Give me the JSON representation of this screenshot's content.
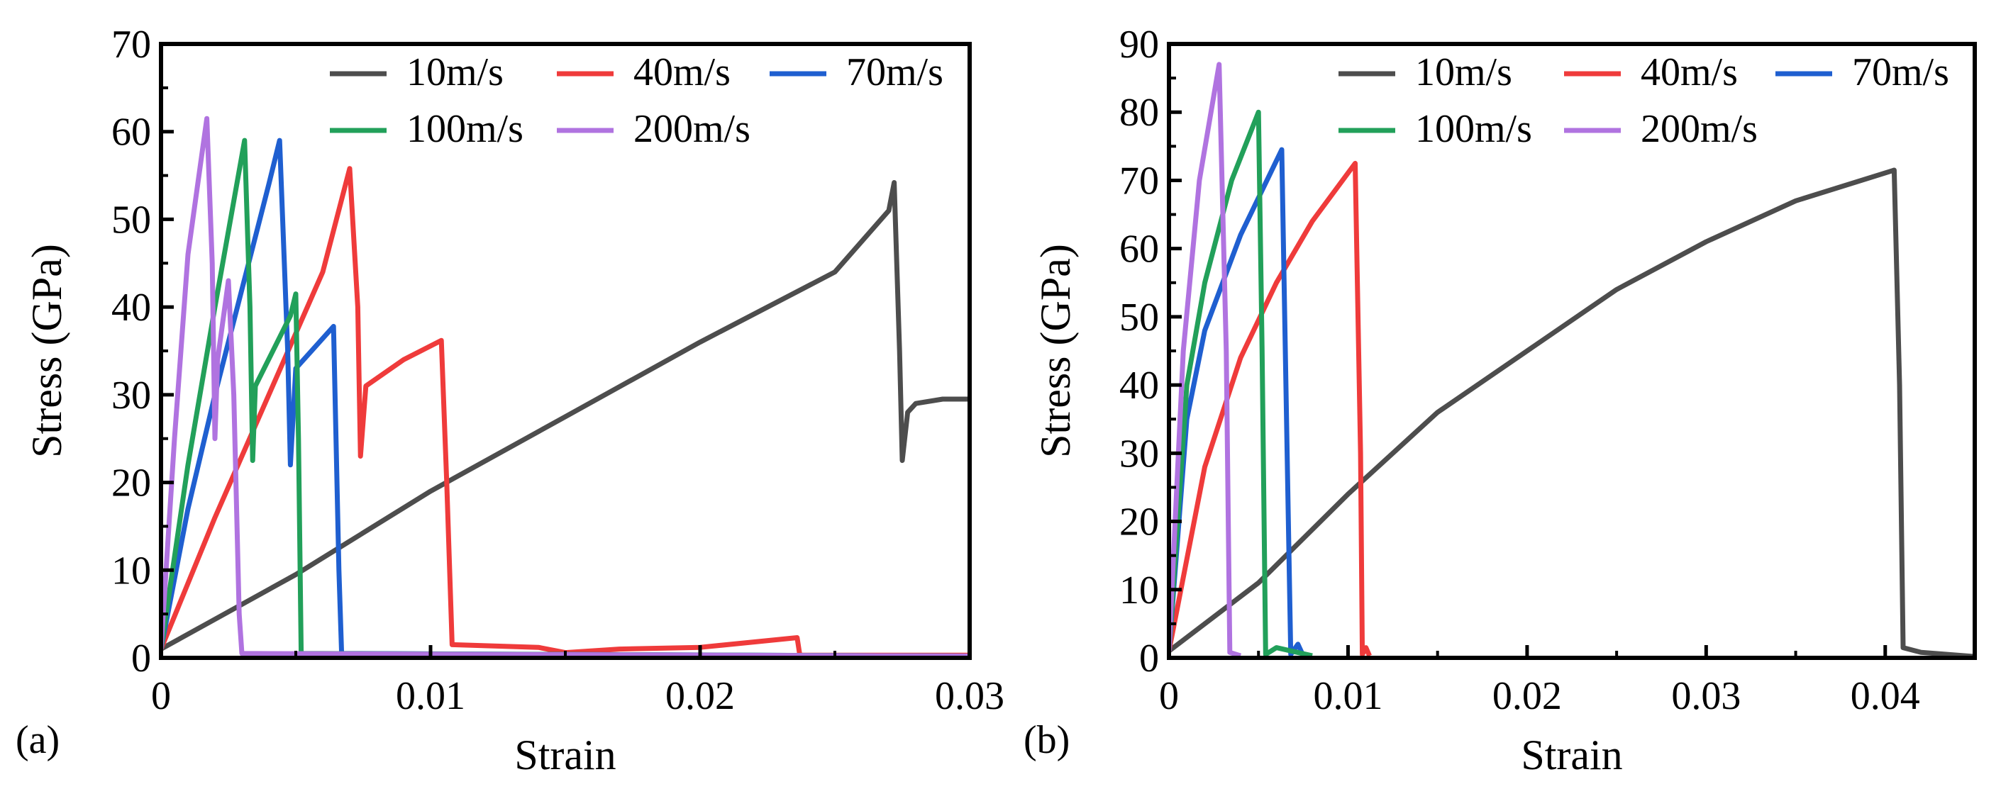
{
  "figure": {
    "panel_labels": [
      "(a)",
      "(b)"
    ]
  },
  "colors": {
    "10m/s": "#4d4d4d",
    "40m/s": "#ef3b3b",
    "70m/s": "#1f5fd0",
    "100m/s": "#22a05a",
    "200m/s": "#b073e0"
  },
  "chart_data": [
    {
      "type": "line",
      "panel": "(a)",
      "title": "",
      "xlabel": "Strain",
      "ylabel": "Stress (GPa)",
      "xlim": [
        0,
        0.03
      ],
      "ylim": [
        0,
        70
      ],
      "xticks": [
        0,
        0.01,
        0.02,
        0.03
      ],
      "xtick_labels": [
        "0",
        "0.01",
        "0.02",
        "0.03"
      ],
      "yticks": [
        0,
        10,
        20,
        30,
        40,
        50,
        60,
        70
      ],
      "ytick_labels": [
        "0",
        "10",
        "20",
        "30",
        "40",
        "50",
        "60",
        "70"
      ],
      "legend_position": "top-right",
      "series": [
        {
          "name": "10m/s",
          "points": [
            [
              0,
              1
            ],
            [
              0.005,
              9.5
            ],
            [
              0.01,
              19
            ],
            [
              0.015,
              27.5
            ],
            [
              0.02,
              36
            ],
            [
              0.025,
              44
            ],
            [
              0.027,
              51
            ],
            [
              0.0272,
              54.2
            ],
            [
              0.0274,
              35
            ],
            [
              0.0275,
              22.5
            ],
            [
              0.0277,
              28
            ],
            [
              0.028,
              29
            ],
            [
              0.029,
              29.5
            ],
            [
              0.03,
              29.5
            ]
          ]
        },
        {
          "name": "40m/s",
          "points": [
            [
              0,
              1
            ],
            [
              0.002,
              16
            ],
            [
              0.004,
              30
            ],
            [
              0.006,
              44
            ],
            [
              0.007,
              55.8
            ],
            [
              0.0073,
              40
            ],
            [
              0.0074,
              23
            ],
            [
              0.0076,
              31
            ],
            [
              0.009,
              34
            ],
            [
              0.0104,
              36.2
            ],
            [
              0.0106,
              20
            ],
            [
              0.0108,
              1.5
            ],
            [
              0.014,
              1.2
            ],
            [
              0.015,
              0.6
            ],
            [
              0.017,
              1
            ],
            [
              0.02,
              1.2
            ],
            [
              0.0236,
              2.3
            ],
            [
              0.0237,
              0.3
            ],
            [
              0.03,
              0.3
            ]
          ]
        },
        {
          "name": "70m/s",
          "points": [
            [
              0,
              1
            ],
            [
              0.001,
              17
            ],
            [
              0.002,
              30
            ],
            [
              0.003,
              42
            ],
            [
              0.004,
              54
            ],
            [
              0.0044,
              59
            ],
            [
              0.0047,
              35
            ],
            [
              0.0048,
              22
            ],
            [
              0.005,
              33
            ],
            [
              0.0064,
              37.8
            ],
            [
              0.0066,
              10
            ],
            [
              0.0067,
              0.5
            ],
            [
              0.03,
              0.2
            ]
          ]
        },
        {
          "name": "100m/s",
          "points": [
            [
              0,
              1
            ],
            [
              0.001,
              22
            ],
            [
              0.002,
              40
            ],
            [
              0.0031,
              59
            ],
            [
              0.0033,
              40
            ],
            [
              0.0034,
              22.5
            ],
            [
              0.0035,
              31
            ],
            [
              0.0048,
              39
            ],
            [
              0.005,
              41.5
            ],
            [
              0.0051,
              25
            ],
            [
              0.0052,
              0.5
            ],
            [
              0.03,
              0.2
            ]
          ]
        },
        {
          "name": "200m/s",
          "points": [
            [
              0,
              1
            ],
            [
              0.0005,
              25
            ],
            [
              0.001,
              46
            ],
            [
              0.0017,
              61.5
            ],
            [
              0.0019,
              45
            ],
            [
              0.002,
              25
            ],
            [
              0.0021,
              34
            ],
            [
              0.0025,
              43
            ],
            [
              0.0027,
              30
            ],
            [
              0.0029,
              5
            ],
            [
              0.003,
              0.5
            ],
            [
              0.03,
              0.2
            ]
          ]
        }
      ]
    },
    {
      "type": "line",
      "panel": "(b)",
      "title": "",
      "xlabel": "Strain",
      "ylabel": "Stress (GPa)",
      "xlim": [
        0,
        0.045
      ],
      "ylim": [
        0,
        90
      ],
      "xticks": [
        0,
        0.01,
        0.02,
        0.03,
        0.04
      ],
      "xtick_labels": [
        "0",
        "0.01",
        "0.02",
        "0.03",
        "0.04"
      ],
      "yticks": [
        0,
        10,
        20,
        30,
        40,
        50,
        60,
        70,
        80,
        90
      ],
      "ytick_labels": [
        "0",
        "10",
        "20",
        "30",
        "40",
        "50",
        "60",
        "70",
        "80",
        "90"
      ],
      "legend_position": "top-right",
      "series": [
        {
          "name": "10m/s",
          "points": [
            [
              0,
              1
            ],
            [
              0.005,
              11
            ],
            [
              0.01,
              24
            ],
            [
              0.015,
              36
            ],
            [
              0.02,
              45
            ],
            [
              0.025,
              54
            ],
            [
              0.03,
              61
            ],
            [
              0.035,
              67
            ],
            [
              0.0405,
              71.5
            ],
            [
              0.0408,
              40
            ],
            [
              0.041,
              1.5
            ],
            [
              0.042,
              0.8
            ],
            [
              0.045,
              0.2
            ]
          ]
        },
        {
          "name": "40m/s",
          "points": [
            [
              0,
              1
            ],
            [
              0.002,
              28
            ],
            [
              0.004,
              44
            ],
            [
              0.006,
              55
            ],
            [
              0.008,
              64
            ],
            [
              0.0104,
              72.5
            ],
            [
              0.0107,
              30
            ],
            [
              0.0108,
              0.5
            ],
            [
              0.011,
              1.5
            ],
            [
              0.0112,
              0.3
            ]
          ]
        },
        {
          "name": "70m/s",
          "points": [
            [
              0,
              1
            ],
            [
              0.001,
              35
            ],
            [
              0.002,
              48
            ],
            [
              0.004,
              62
            ],
            [
              0.0063,
              74.5
            ],
            [
              0.0066,
              30
            ],
            [
              0.0068,
              0.5
            ],
            [
              0.0072,
              2
            ],
            [
              0.0075,
              0.3
            ]
          ]
        },
        {
          "name": "100m/s",
          "points": [
            [
              0,
              1
            ],
            [
              0.001,
              40
            ],
            [
              0.002,
              55
            ],
            [
              0.0035,
              70
            ],
            [
              0.005,
              80
            ],
            [
              0.0052,
              45
            ],
            [
              0.0054,
              0.5
            ],
            [
              0.006,
              1.5
            ],
            [
              0.008,
              0.3
            ]
          ]
        },
        {
          "name": "200m/s",
          "points": [
            [
              0,
              1
            ],
            [
              0.0008,
              45
            ],
            [
              0.0017,
              70
            ],
            [
              0.0028,
              87
            ],
            [
              0.0032,
              45
            ],
            [
              0.0034,
              0.8
            ],
            [
              0.004,
              0.3
            ]
          ]
        }
      ]
    }
  ]
}
